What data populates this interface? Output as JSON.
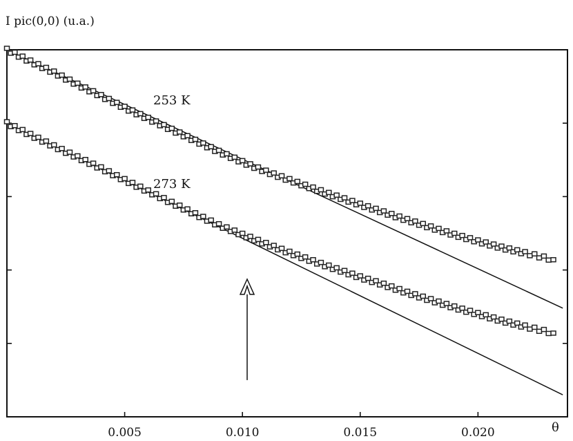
{
  "chart_data": {
    "type": "scatter",
    "ylabel": "I  pic(0,0)   (u.a.)",
    "xlabel": "θ",
    "xlim": [
      0.0,
      0.0238
    ],
    "ylim": [
      0.0,
      1.0
    ],
    "x_ticks": [
      0.005,
      0.01,
      0.015,
      0.02
    ],
    "x_tick_labels": [
      "0.005",
      "0.010",
      "0.015",
      "0.020"
    ],
    "y_ticks": [
      0.2,
      0.4,
      0.6,
      0.8
    ],
    "y_tick_labels": [
      "",
      "",
      "",
      ""
    ],
    "grid": false,
    "series": [
      {
        "name": "253 K",
        "points": [
          [
            0.0,
            1.0
          ],
          [
            0.001,
            0.968
          ],
          [
            0.002,
            0.938
          ],
          [
            0.003,
            0.905
          ],
          [
            0.004,
            0.874
          ],
          [
            0.005,
            0.842
          ],
          [
            0.006,
            0.812
          ],
          [
            0.007,
            0.782
          ],
          [
            0.008,
            0.752
          ],
          [
            0.009,
            0.722
          ],
          [
            0.01,
            0.694
          ],
          [
            0.011,
            0.668
          ],
          [
            0.012,
            0.645
          ],
          [
            0.013,
            0.622
          ],
          [
            0.014,
            0.6
          ],
          [
            0.015,
            0.578
          ],
          [
            0.016,
            0.557
          ],
          [
            0.017,
            0.536
          ],
          [
            0.018,
            0.516
          ],
          [
            0.019,
            0.496
          ],
          [
            0.02,
            0.478
          ],
          [
            0.021,
            0.461
          ],
          [
            0.022,
            0.446
          ],
          [
            0.0232,
            0.428
          ]
        ],
        "fit": [
          [
            0.0,
            1.0
          ],
          [
            0.0236,
            0.296
          ]
        ]
      },
      {
        "name": "273 K",
        "points": [
          [
            0.0,
            0.8
          ],
          [
            0.001,
            0.768
          ],
          [
            0.002,
            0.737
          ],
          [
            0.003,
            0.707
          ],
          [
            0.004,
            0.677
          ],
          [
            0.005,
            0.645
          ],
          [
            0.006,
            0.614
          ],
          [
            0.007,
            0.583
          ],
          [
            0.008,
            0.552
          ],
          [
            0.009,
            0.522
          ],
          [
            0.01,
            0.496
          ],
          [
            0.011,
            0.471
          ],
          [
            0.012,
            0.447
          ],
          [
            0.013,
            0.424
          ],
          [
            0.014,
            0.402
          ],
          [
            0.015,
            0.38
          ],
          [
            0.016,
            0.36
          ],
          [
            0.017,
            0.338
          ],
          [
            0.018,
            0.318
          ],
          [
            0.019,
            0.298
          ],
          [
            0.02,
            0.28
          ],
          [
            0.021,
            0.262
          ],
          [
            0.022,
            0.246
          ],
          [
            0.0232,
            0.228
          ]
        ],
        "fit": [
          [
            0.0,
            0.8
          ],
          [
            0.0236,
            0.06
          ]
        ]
      }
    ],
    "annotations": [
      {
        "type": "arrow",
        "x": 0.0102,
        "y_from": 0.1,
        "y_to": 0.375
      }
    ]
  }
}
